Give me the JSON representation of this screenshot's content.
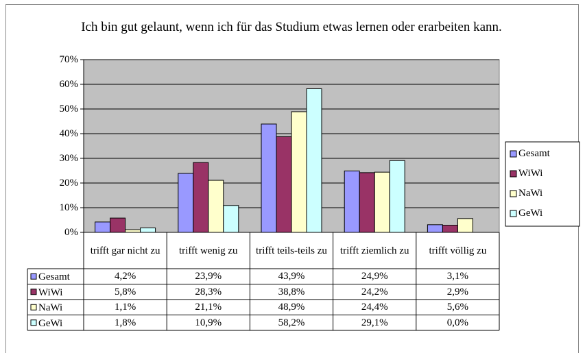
{
  "chart_data": {
    "type": "bar",
    "title": "Ich bin gut gelaunt, wenn ich für das Studium etwas lernen oder erarbeiten kann.",
    "categories": [
      "trifft gar nicht zu",
      "trifft wenig zu",
      "trifft teils-teils zu",
      "trifft ziemlich zu",
      "trifft völlig zu"
    ],
    "series": [
      {
        "name": "Gesamt",
        "color": "#9999ff",
        "values": [
          4.2,
          23.9,
          43.9,
          24.9,
          3.1
        ],
        "value_labels": [
          "4,2%",
          "23,9%",
          "43,9%",
          "24,9%",
          "3,1%"
        ]
      },
      {
        "name": "WiWi",
        "color": "#993366",
        "values": [
          5.8,
          28.3,
          38.8,
          24.2,
          2.9
        ],
        "value_labels": [
          "5,8%",
          "28,3%",
          "38,8%",
          "24,2%",
          "2,9%"
        ]
      },
      {
        "name": "NaWi",
        "color": "#ffffcc",
        "values": [
          1.1,
          21.1,
          48.9,
          24.4,
          5.6
        ],
        "value_labels": [
          "1,1%",
          "21,1%",
          "48,9%",
          "24,4%",
          "5,6%"
        ]
      },
      {
        "name": "GeWi",
        "color": "#ccffff",
        "values": [
          1.8,
          10.9,
          58.2,
          29.1,
          0.0
        ],
        "value_labels": [
          "1,8%",
          "10,9%",
          "58,2%",
          "29,1%",
          "0,0%"
        ]
      }
    ],
    "ylim": [
      0,
      70
    ],
    "yticks": [
      {
        "value": 0,
        "label": "0%"
      },
      {
        "value": 10,
        "label": "10%"
      },
      {
        "value": 20,
        "label": "20%"
      },
      {
        "value": 30,
        "label": "30%"
      },
      {
        "value": 40,
        "label": "40%"
      },
      {
        "value": 50,
        "label": "50%"
      },
      {
        "value": 60,
        "label": "60%"
      },
      {
        "value": 70,
        "label": "70%"
      }
    ],
    "grid": true,
    "legend": "right",
    "plot_background": "#c0c0c0"
  }
}
